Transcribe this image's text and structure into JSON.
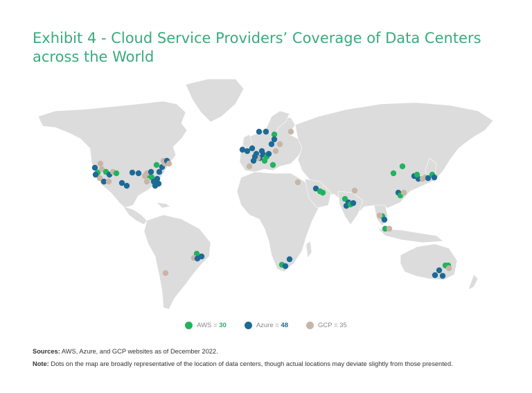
{
  "title": "Exhibit 4 - Cloud Service Providers’ Coverage of Data Centers across the World",
  "colors": {
    "aws": "#22b35e",
    "azure": "#1d6a96",
    "gcp": "#c8b5a6",
    "land": "#dcdcdc",
    "title": "#3aaa7f"
  },
  "legend": {
    "aws": {
      "label": "AWS",
      "sep": " = ",
      "count": "30"
    },
    "azure": {
      "label": "Azure",
      "sep": " = ",
      "count": "48"
    },
    "gcp": {
      "label": "GCP",
      "sep": " = ",
      "count": "35"
    }
  },
  "footer": {
    "sources_label": "Sources:",
    "sources_text": " AWS, Azure, and GCP websites as of December 2022.",
    "note_label": "Note:",
    "note_text": " Dots on the map are broadly representative of the location of data centers, though actual locations may deviate slightly from those presented."
  },
  "chart_data": {
    "type": "scatter",
    "series": [
      {
        "name": "AWS",
        "color": "aws",
        "count": 30
      },
      {
        "name": "Azure",
        "color": "azure",
        "count": 48
      },
      {
        "name": "GCP",
        "color": "gcp",
        "count": 35
      }
    ]
  }
}
